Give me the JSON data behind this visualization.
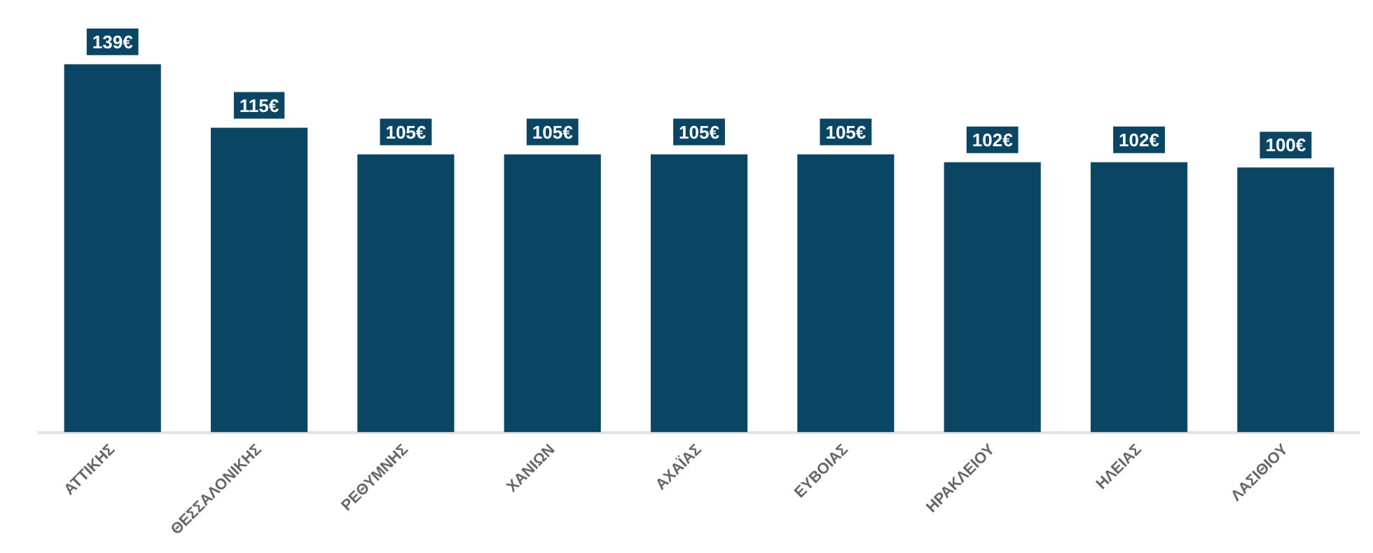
{
  "chart_data": {
    "type": "bar",
    "categories": [
      "ΑΤΤΙΚΗΣ",
      "ΘΕΣΣΑΛΟΝΙΚΗΣ",
      "ΡΕΘΥΜΝΗΣ",
      "ΧΑΝΙΩΝ",
      "ΑΧΑΪΑΣ",
      "ΕΥΒΟΙΑΣ",
      "ΗΡΑΚΛΕΙΟΥ",
      "ΗΛΕΙΑΣ",
      "ΛΑΣΙΘΙΟΥ"
    ],
    "values": [
      139,
      115,
      105,
      105,
      105,
      105,
      102,
      102,
      100
    ],
    "value_labels": [
      "139€",
      "115€",
      "105€",
      "105€",
      "105€",
      "105€",
      "102€",
      "102€",
      "100€"
    ],
    "color": "#0a4564",
    "grid": false,
    "legend": false
  }
}
